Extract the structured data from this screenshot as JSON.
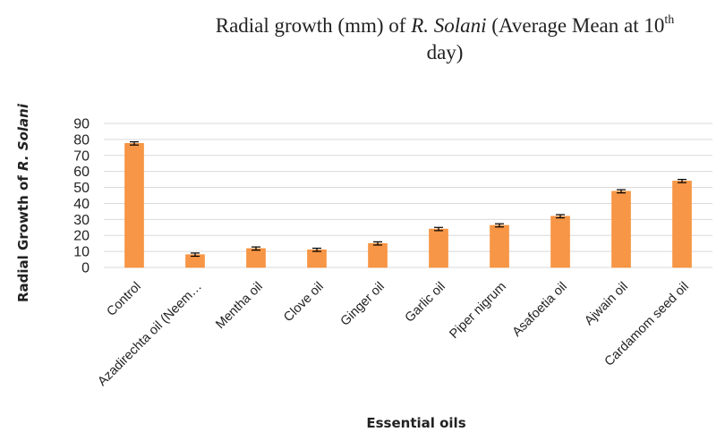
{
  "chart_data": {
    "type": "bar",
    "title_parts": {
      "pre": "Radial growth (mm) of ",
      "italic": "R. Solani",
      "mid": " (Average Mean at 10",
      "sup": "th",
      "line2": "day)"
    },
    "xlabel": "Essential oils",
    "ylabel_parts": {
      "pre": "Radial Growth of ",
      "italic": "R. Solani"
    },
    "categories": [
      "Control",
      "Azadirechta oil (Neem…",
      "Mentha oil",
      "Clove oil",
      "Ginger oil",
      "Garlic oil",
      "Piper nigrum",
      "Asafoetia oil",
      "Ajwain oil",
      "Cardamom seed oil"
    ],
    "values": [
      77.5,
      8,
      11.8,
      11,
      15,
      24,
      26.3,
      32,
      47.6,
      54
    ],
    "errors": [
      1,
      1,
      1,
      1,
      1,
      1,
      1,
      1,
      1,
      1
    ],
    "ylim": [
      0,
      90
    ],
    "yticks": [
      0,
      10,
      20,
      30,
      40,
      50,
      60,
      70,
      80,
      90
    ],
    "grid": true,
    "legend": "none",
    "colors": {
      "bar": "#f79646",
      "grid": "#d9d9d9"
    }
  }
}
